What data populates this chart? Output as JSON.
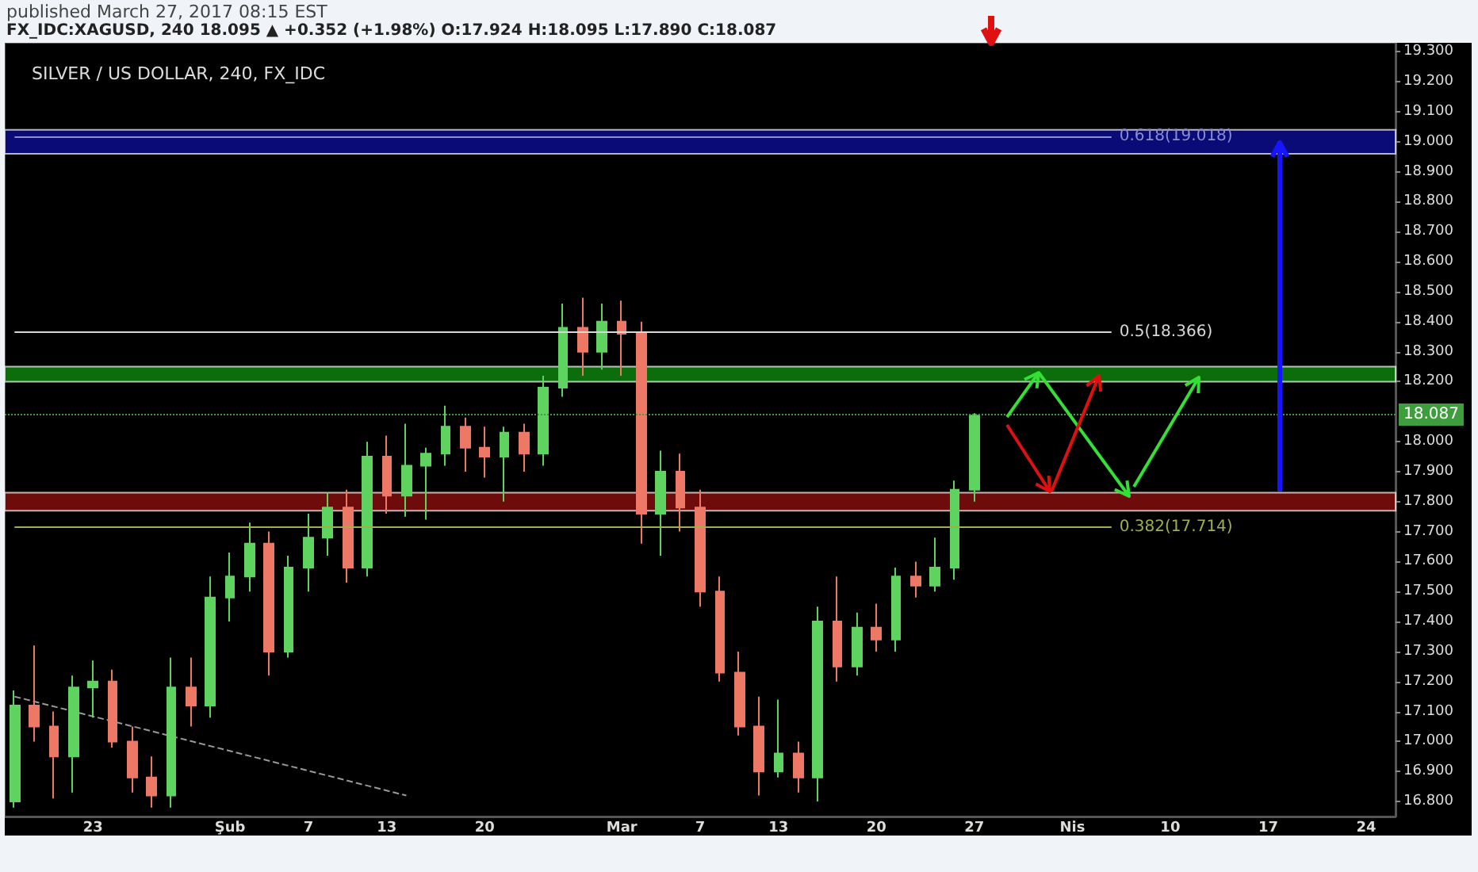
{
  "chart_data": {
    "type": "candlestick",
    "title": "SILVER / US DOLLAR, 240, FX_IDC",
    "subtitle": "FX_IDC:XAGUSD, 240 18.095 ▲ +0.352 (+1.98%) O:17.924 H:18.095 L:17.890 C:18.087",
    "annotations": [
      "published March 27, 2017 08:15 EST"
    ],
    "categories": [
      null,
      null,
      null,
      null,
      "23",
      null,
      null,
      null,
      null,
      null,
      null,
      "Şub",
      null,
      null,
      null,
      "7",
      null,
      null,
      null,
      "13",
      null,
      null,
      null,
      null,
      "20",
      null,
      null,
      null,
      null,
      null,
      null,
      "Mar",
      null,
      null,
      null,
      "7",
      null,
      null,
      null,
      "13",
      null,
      null,
      null,
      null,
      "20",
      null,
      null,
      null,
      null,
      "27",
      null,
      null,
      null,
      null,
      "Nis",
      null,
      null,
      null,
      null,
      "10",
      null,
      null,
      null,
      null,
      "17",
      null,
      null,
      null,
      null,
      "24",
      null
    ],
    "ohlc": [
      [
        16.8,
        17.17,
        16.78,
        17.12
      ],
      [
        17.12,
        17.32,
        17.0,
        17.05
      ],
      [
        17.05,
        17.1,
        16.81,
        16.95
      ],
      [
        16.95,
        17.22,
        16.83,
        17.18
      ],
      [
        17.18,
        17.27,
        17.08,
        17.2
      ],
      [
        17.2,
        17.24,
        16.98,
        17.0
      ],
      [
        17.0,
        17.05,
        16.83,
        16.88
      ],
      [
        16.88,
        16.95,
        16.78,
        16.82
      ],
      [
        16.82,
        17.28,
        16.78,
        17.18
      ],
      [
        17.18,
        17.28,
        17.05,
        17.12
      ],
      [
        17.12,
        17.55,
        17.08,
        17.48
      ],
      [
        17.48,
        17.63,
        17.4,
        17.55
      ],
      [
        17.55,
        17.73,
        17.5,
        17.66
      ],
      [
        17.66,
        17.7,
        17.22,
        17.3
      ],
      [
        17.3,
        17.62,
        17.28,
        17.58
      ],
      [
        17.58,
        17.76,
        17.5,
        17.68
      ],
      [
        17.68,
        17.83,
        17.62,
        17.78
      ],
      [
        17.78,
        17.84,
        17.53,
        17.58
      ],
      [
        17.58,
        18.0,
        17.55,
        17.95
      ],
      [
        17.95,
        18.02,
        17.76,
        17.82
      ],
      [
        17.82,
        18.06,
        17.75,
        17.92
      ],
      [
        17.92,
        17.98,
        17.74,
        17.96
      ],
      [
        17.96,
        18.12,
        17.92,
        18.05
      ],
      [
        18.05,
        18.08,
        17.9,
        17.98
      ],
      [
        17.98,
        18.05,
        17.88,
        17.95
      ],
      [
        17.95,
        18.05,
        17.8,
        18.03
      ],
      [
        18.03,
        18.06,
        17.9,
        17.96
      ],
      [
        17.96,
        18.22,
        17.92,
        18.18
      ],
      [
        18.18,
        18.46,
        18.15,
        18.38
      ],
      [
        18.38,
        18.48,
        18.22,
        18.3
      ],
      [
        18.3,
        18.46,
        18.24,
        18.4
      ],
      [
        18.4,
        18.47,
        18.22,
        18.36
      ],
      [
        18.36,
        18.4,
        17.66,
        17.76
      ],
      [
        17.76,
        17.97,
        17.62,
        17.9
      ],
      [
        17.9,
        17.96,
        17.7,
        17.78
      ],
      [
        17.78,
        17.84,
        17.45,
        17.5
      ],
      [
        17.5,
        17.55,
        17.2,
        17.23
      ],
      [
        17.23,
        17.3,
        17.02,
        17.05
      ],
      [
        17.05,
        17.15,
        16.82,
        16.9
      ],
      [
        16.9,
        17.14,
        16.88,
        16.96
      ],
      [
        16.96,
        17.0,
        16.83,
        16.88
      ],
      [
        16.88,
        17.45,
        16.8,
        17.4
      ],
      [
        17.4,
        17.55,
        17.2,
        17.25
      ],
      [
        17.25,
        17.43,
        17.22,
        17.38
      ],
      [
        17.38,
        17.46,
        17.3,
        17.34
      ],
      [
        17.34,
        17.58,
        17.3,
        17.55
      ],
      [
        17.55,
        17.6,
        17.48,
        17.52
      ],
      [
        17.52,
        17.68,
        17.5,
        17.58
      ],
      [
        17.58,
        17.87,
        17.54,
        17.84
      ],
      [
        17.84,
        18.095,
        17.8,
        18.087
      ],
      null,
      null,
      null,
      null,
      null,
      null,
      null,
      null,
      null,
      null,
      null,
      null,
      null,
      null,
      null,
      null,
      null,
      null,
      null,
      null,
      null
    ],
    "colors": [
      "#5fd35f",
      "#ee7866",
      "#ee7866",
      "#5fd35f",
      "#5fd35f",
      "#ee7866",
      "#ee7866",
      "#ee7866",
      "#5fd35f",
      "#ee7866",
      "#5fd35f",
      "#5fd35f",
      "#5fd35f",
      "#ee7866",
      "#5fd35f",
      "#5fd35f",
      "#5fd35f",
      "#ee7866",
      "#5fd35f",
      "#ee7866",
      "#5fd35f",
      "#5fd35f",
      "#5fd35f",
      "#ee7866",
      "#ee7866",
      "#5fd35f",
      "#ee7866",
      "#5fd35f",
      "#5fd35f",
      "#ee7866",
      "#5fd35f",
      "#ee7866",
      "#ee7866",
      "#5fd35f",
      "#ee7866",
      "#ee7866",
      "#ee7866",
      "#ee7866",
      "#ee7866",
      "#5fd35f",
      "#ee7866",
      "#5fd35f",
      "#ee7866",
      "#5fd35f",
      "#ee7866",
      "#5fd35f",
      "#ee7866",
      "#5fd35f",
      "#5fd35f",
      "#5fd35f",
      null,
      null,
      null,
      null,
      null,
      null,
      null,
      null,
      null,
      null,
      null,
      null,
      null,
      null,
      null,
      null,
      null,
      null,
      null,
      null,
      null
    ],
    "series": [
      {
        "type": "line",
        "color": "#999999",
        "line_style": "dashed",
        "values": [
          17.15,
          null,
          null,
          null,
          null,
          null,
          null,
          null,
          null,
          null,
          null,
          null,
          null,
          null,
          null,
          null,
          null,
          null,
          null,
          null,
          16.82,
          null,
          null,
          null,
          null,
          null,
          null,
          null,
          null,
          null,
          null,
          null,
          null,
          null,
          null,
          null,
          null,
          null,
          null,
          null,
          null,
          null,
          null,
          null,
          null,
          null,
          null,
          null,
          null,
          null,
          null,
          null,
          null,
          null,
          null,
          null,
          null,
          null,
          null,
          null,
          null,
          null,
          null,
          null,
          null,
          null,
          null,
          null,
          null,
          null,
          null
        ]
      }
    ],
    "marker": "none",
    "ylim": [
      16.75,
      19.33
    ],
    "yticks": [
      {
        "value": 16.8,
        "label": "16.800"
      },
      {
        "value": 16.9,
        "label": "16.900"
      },
      {
        "value": 17.0,
        "label": "17.000"
      },
      {
        "value": 17.1,
        "label": "17.100"
      },
      {
        "value": 17.2,
        "label": "17.200"
      },
      {
        "value": 17.3,
        "label": "17.300"
      },
      {
        "value": 17.4,
        "label": "17.400"
      },
      {
        "value": 17.5,
        "label": "17.500"
      },
      {
        "value": 17.6,
        "label": "17.600"
      },
      {
        "value": 17.7,
        "label": "17.700"
      },
      {
        "value": 17.8,
        "label": "17.800"
      },
      {
        "value": 17.9,
        "label": "17.900"
      },
      {
        "value": 18.0,
        "label": "18.000"
      },
      {
        "value": 18.2,
        "label": "18.200"
      },
      {
        "value": 18.3,
        "label": "18.300"
      },
      {
        "value": 18.4,
        "label": "18.400"
      },
      {
        "value": 18.5,
        "label": "18.500"
      },
      {
        "value": 18.6,
        "label": "18.600"
      },
      {
        "value": 18.7,
        "label": "18.700"
      },
      {
        "value": 18.8,
        "label": "18.800"
      },
      {
        "value": 18.9,
        "label": "18.900"
      },
      {
        "value": 19.0,
        "label": "19.000"
      },
      {
        "value": 19.1,
        "label": "19.100"
      },
      {
        "value": 19.2,
        "label": "19.200"
      },
      {
        "value": 19.3,
        "label": "19.300"
      }
    ],
    "bands": [
      {
        "axis": "y",
        "from": 18.96,
        "to": 19.04,
        "color": "#0b0b78"
      },
      {
        "axis": "y",
        "from": 18.2,
        "to": 18.25,
        "color": "#0b6e0b"
      },
      {
        "axis": "y",
        "from": 17.77,
        "to": 17.83,
        "color": "#6e0b0b"
      }
    ],
    "ref_lines": [
      {
        "axis": "y",
        "value": 19.018,
        "label": "0.618(19.018)",
        "color": "#8c8cd0",
        "line_style": "solid"
      },
      {
        "axis": "y",
        "value": 18.366,
        "label": "0.5(18.366)",
        "color": "#d8d8d8",
        "line_style": "solid"
      },
      {
        "axis": "y",
        "value": 17.714,
        "label": "0.382(17.714)",
        "color": "#9fb04a",
        "line_style": "solid"
      },
      {
        "axis": "y",
        "value": 18.087,
        "label": "18.087",
        "color": "#3e9e3e",
        "line_style": "dotted"
      }
    ]
  }
}
